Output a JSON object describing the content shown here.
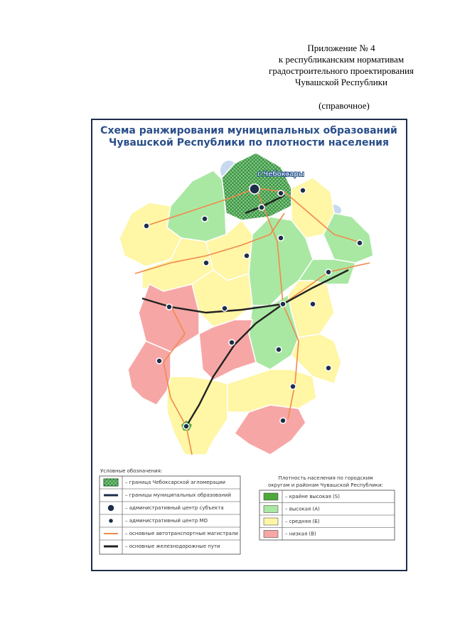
{
  "header": {
    "lines": [
      "Приложение № 4",
      "к республиканским нормативам",
      "градостроительного проектирования",
      "Чувашской Республики"
    ],
    "note": "(справочное)"
  },
  "map": {
    "title_lines": [
      "Схема ранжирования муниципальных образований",
      "Чувашской Республики по плотности населения"
    ],
    "city_label": "г.Чебоксары"
  },
  "legend_left": {
    "title": "Условные обозначения:",
    "items": [
      "– граница Чебоксарской агломерации",
      "– границы муниципальных образований",
      "– административный центр субъекта",
      "– административный центр МО",
      "– основные автотранспортные магистрали",
      "– основные железнодорожные пути"
    ]
  },
  "legend_right": {
    "title_lines": [
      "Плотность населения по городским",
      "округам и районам Чувашской Республики:"
    ],
    "items": [
      "– крайне высокая (S)",
      "– высокая (А)",
      "– средняя (Б)",
      "– низкая (В)"
    ]
  }
}
